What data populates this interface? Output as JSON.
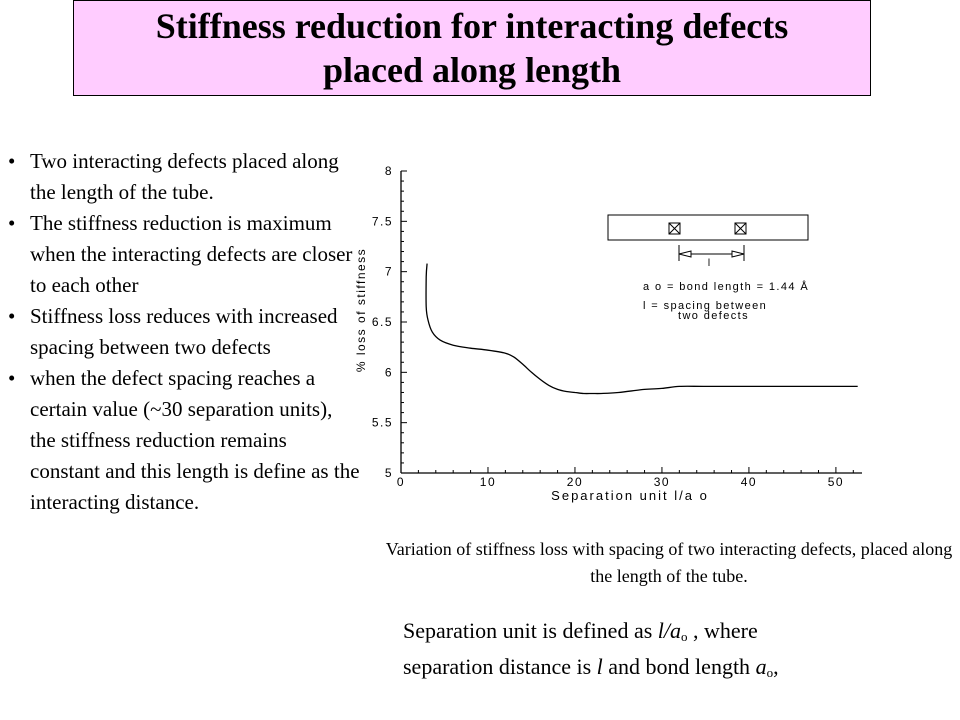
{
  "title": {
    "line1": "Stiffness reduction for interacting defects",
    "line2": "placed along length",
    "background": "#ffccff"
  },
  "bullets": [
    "Two interacting defects placed along the length of the tube.",
    "The stiffness reduction is maximum when the interacting defects are closer to each other",
    "Stiffness loss  reduces with increased spacing between two defects",
    "when the defect spacing reaches a certain value (~30 separation units), the stiffness reduction remains constant and this length is define as the interacting distance."
  ],
  "bullet_symbol": "•",
  "chart_data": {
    "type": "line",
    "ylabel": "% loss of stiffness",
    "xlabel": "Separation unit l/a o",
    "xlim": [
      0,
      53
    ],
    "ylim": [
      5,
      8
    ],
    "xticks": [
      0,
      10,
      20,
      30,
      40,
      50
    ],
    "yticks": [
      5,
      5.5,
      6,
      6.5,
      7,
      7.5,
      8
    ],
    "xtick_labels": [
      "0",
      "10",
      "20",
      "30",
      "40",
      "50"
    ],
    "ytick_labels": [
      "5",
      "5.5",
      "6",
      "6.5",
      "7",
      "7.5",
      "8"
    ],
    "grid": false,
    "series": [
      {
        "x": [
          3,
          2.9,
          2.9,
          3.1,
          3.6,
          4.5,
          6,
          8,
          10,
          12,
          13,
          14,
          15,
          16,
          17,
          18,
          19,
          20,
          21,
          22,
          23,
          25,
          28,
          30,
          32,
          35,
          40,
          45,
          50,
          52.5
        ],
        "y": [
          7.08,
          6.95,
          6.65,
          6.52,
          6.4,
          6.32,
          6.27,
          6.24,
          6.22,
          6.19,
          6.15,
          6.08,
          6.0,
          5.93,
          5.87,
          5.83,
          5.81,
          5.8,
          5.79,
          5.79,
          5.79,
          5.8,
          5.83,
          5.84,
          5.86,
          5.86,
          5.86,
          5.86,
          5.86,
          5.86
        ]
      }
    ],
    "inset": {
      "ao_label": "a o = bond length = 1.44 Å",
      "l_label_line1": "l =  spacing between",
      "l_label_line2": "two defects",
      "spacing_symbol": "l"
    }
  },
  "caption": "Variation of stiffness loss with spacing of two interacting defects, placed along the length of the tube.",
  "definition": {
    "t1": "Separation unit is defined as ",
    "l": "l",
    "slash_a": "/a",
    "sub_o": "o",
    "t2": " , where",
    "t3": "separation distance is ",
    "l2": "l",
    "t4": " and bond length ",
    "a": "a",
    "sub_o2": "o",
    "t5": ","
  }
}
